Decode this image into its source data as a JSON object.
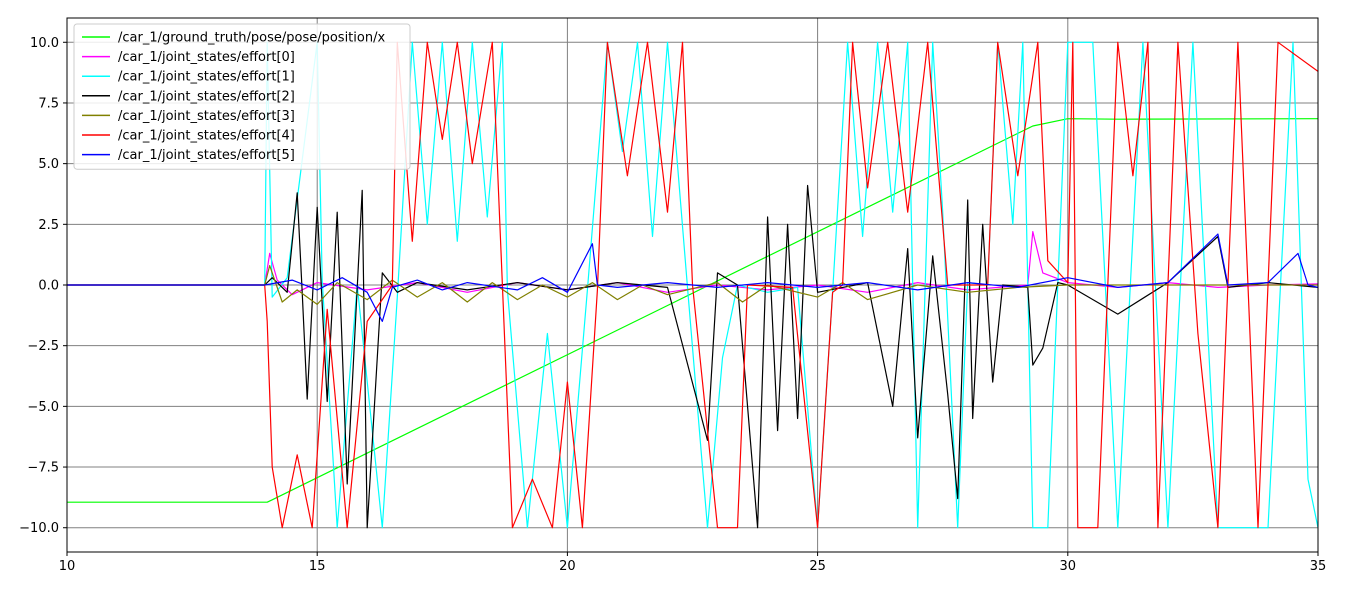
{
  "chart_data": {
    "type": "line",
    "title": "",
    "xlabel": "",
    "ylabel": "",
    "xlim": [
      10,
      35
    ],
    "ylim": [
      -11,
      11
    ],
    "x_ticks": [
      10,
      15,
      20,
      25,
      30,
      35
    ],
    "y_ticks": [
      -10.0,
      -7.5,
      -5.0,
      -2.5,
      0.0,
      2.5,
      5.0,
      7.5,
      10.0
    ],
    "x_tick_labels": [
      "10",
      "15",
      "20",
      "25",
      "30",
      "35"
    ],
    "y_tick_labels": [
      "−10.0",
      "−7.5",
      "−5.0",
      "−2.5",
      "0.0",
      "2.5",
      "5.0",
      "7.5",
      "10.0"
    ],
    "grid": true,
    "legend_position": "top-left",
    "series": [
      {
        "name": "/car_1/ground_truth/pose/pose/position/x",
        "color": "#00ff00",
        "points": [
          [
            10,
            -8.95
          ],
          [
            14.0,
            -8.95
          ],
          [
            14.1,
            -8.85
          ],
          [
            29.3,
            6.55
          ],
          [
            30.0,
            6.85
          ],
          [
            31.0,
            6.83
          ],
          [
            35.0,
            6.85
          ]
        ]
      },
      {
        "name": "/car_1/joint_states/effort[0]",
        "color": "#ff00ff",
        "points": [
          [
            10,
            0.0
          ],
          [
            13.95,
            0.0
          ],
          [
            14.05,
            1.3
          ],
          [
            14.2,
            0.2
          ],
          [
            14.5,
            -0.4
          ],
          [
            15.0,
            0.1
          ],
          [
            16.0,
            -0.2
          ],
          [
            17.0,
            0.1
          ],
          [
            18.0,
            -0.3
          ],
          [
            19.0,
            0.1
          ],
          [
            20.0,
            -0.2
          ],
          [
            21.0,
            0.1
          ],
          [
            22.0,
            -0.3
          ],
          [
            23.0,
            0.0
          ],
          [
            24.0,
            -0.2
          ],
          [
            25.0,
            0.0
          ],
          [
            26.0,
            -0.3
          ],
          [
            27.0,
            0.1
          ],
          [
            28.0,
            -0.2
          ],
          [
            29.2,
            0.0
          ],
          [
            29.3,
            2.2
          ],
          [
            29.5,
            0.5
          ],
          [
            30.0,
            0.1
          ],
          [
            31.0,
            -0.1
          ],
          [
            32.0,
            0.1
          ],
          [
            33.0,
            -0.1
          ],
          [
            34.0,
            0.0
          ],
          [
            35.0,
            0.05
          ]
        ]
      },
      {
        "name": "/car_1/joint_states/effort[1]",
        "color": "#00ffff",
        "points": [
          [
            10,
            0.0
          ],
          [
            13.95,
            0.0
          ],
          [
            14.0,
            10.0
          ],
          [
            14.1,
            -0.5
          ],
          [
            14.4,
            0.3
          ],
          [
            15.0,
            10.0
          ],
          [
            15.1,
            0.2
          ],
          [
            15.4,
            -10.0
          ],
          [
            15.8,
            0.0
          ],
          [
            16.3,
            -10.0
          ],
          [
            16.6,
            -0.5
          ],
          [
            16.9,
            10.0
          ],
          [
            17.2,
            2.5
          ],
          [
            17.5,
            10.0
          ],
          [
            17.8,
            1.8
          ],
          [
            18.1,
            10.0
          ],
          [
            18.4,
            2.8
          ],
          [
            18.7,
            10.0
          ],
          [
            18.8,
            -0.2
          ],
          [
            19.2,
            -10.0
          ],
          [
            19.6,
            -2.0
          ],
          [
            20.0,
            -10.0
          ],
          [
            20.4,
            -0.2
          ],
          [
            20.8,
            10.0
          ],
          [
            21.1,
            5.5
          ],
          [
            21.4,
            10.0
          ],
          [
            21.7,
            2.0
          ],
          [
            22.0,
            10.0
          ],
          [
            22.4,
            -0.1
          ],
          [
            22.8,
            -10.0
          ],
          [
            23.1,
            -3.0
          ],
          [
            23.4,
            0.0
          ],
          [
            24.0,
            -0.3
          ],
          [
            24.6,
            -0.1
          ],
          [
            25.0,
            -10.0
          ],
          [
            25.3,
            -0.3
          ],
          [
            25.6,
            10.0
          ],
          [
            25.9,
            2.0
          ],
          [
            26.2,
            10.0
          ],
          [
            26.5,
            3.0
          ],
          [
            26.8,
            10.0
          ],
          [
            27.0,
            -10.0
          ],
          [
            27.3,
            10.0
          ],
          [
            27.5,
            3.0
          ],
          [
            27.8,
            -10.0
          ],
          [
            28.0,
            0.1
          ],
          [
            28.4,
            0.0
          ],
          [
            28.6,
            10.0
          ],
          [
            28.9,
            2.5
          ],
          [
            29.1,
            10.0
          ],
          [
            29.2,
            0.0
          ],
          [
            29.3,
            -10.0
          ],
          [
            29.6,
            -10.0
          ],
          [
            30.0,
            10.0
          ],
          [
            30.5,
            10.0
          ],
          [
            31.0,
            -10.0
          ],
          [
            31.5,
            10.0
          ],
          [
            32.0,
            -10.0
          ],
          [
            32.5,
            10.0
          ],
          [
            33.0,
            -10.0
          ],
          [
            34.0,
            -10.0
          ],
          [
            34.5,
            10.0
          ],
          [
            34.8,
            -8.0
          ],
          [
            35.0,
            -10.0
          ]
        ]
      },
      {
        "name": "/car_1/joint_states/effort[2]",
        "color": "#000000",
        "points": [
          [
            10,
            0.0
          ],
          [
            13.95,
            0.0
          ],
          [
            14.1,
            0.3
          ],
          [
            14.4,
            -0.3
          ],
          [
            14.6,
            3.8
          ],
          [
            14.7,
            -0.3
          ],
          [
            14.8,
            -4.7
          ],
          [
            15.0,
            3.2
          ],
          [
            15.2,
            -4.8
          ],
          [
            15.4,
            3.0
          ],
          [
            15.6,
            -8.2
          ],
          [
            15.9,
            3.9
          ],
          [
            16.0,
            -10.0
          ],
          [
            16.3,
            0.5
          ],
          [
            16.6,
            -0.3
          ],
          [
            17.0,
            0.1
          ],
          [
            18.0,
            -0.2
          ],
          [
            19.0,
            0.1
          ],
          [
            20.0,
            -0.2
          ],
          [
            21.0,
            0.1
          ],
          [
            22.0,
            -0.1
          ],
          [
            22.8,
            -6.4
          ],
          [
            23.0,
            0.5
          ],
          [
            23.4,
            0.0
          ],
          [
            23.8,
            -10.0
          ],
          [
            24.0,
            2.8
          ],
          [
            24.2,
            -6.0
          ],
          [
            24.4,
            2.5
          ],
          [
            24.6,
            -5.5
          ],
          [
            24.8,
            4.1
          ],
          [
            25.0,
            -0.3
          ],
          [
            26.0,
            0.1
          ],
          [
            26.5,
            -5.0
          ],
          [
            26.8,
            1.5
          ],
          [
            27.0,
            -6.3
          ],
          [
            27.3,
            1.2
          ],
          [
            27.6,
            -4.5
          ],
          [
            27.8,
            -8.8
          ],
          [
            28.0,
            3.5
          ],
          [
            28.1,
            -5.5
          ],
          [
            28.3,
            2.5
          ],
          [
            28.5,
            -4.0
          ],
          [
            28.7,
            0.0
          ],
          [
            29.2,
            -0.1
          ],
          [
            29.3,
            -3.3
          ],
          [
            29.5,
            -2.6
          ],
          [
            29.8,
            0.1
          ],
          [
            30.0,
            0.0
          ],
          [
            31.0,
            -1.2
          ],
          [
            32.0,
            0.1
          ],
          [
            33.0,
            2.0
          ],
          [
            33.2,
            -0.1
          ],
          [
            34.0,
            0.1
          ],
          [
            35.0,
            -0.1
          ]
        ]
      },
      {
        "name": "/car_1/joint_states/effort[3]",
        "color": "#808000",
        "points": [
          [
            10,
            0.0
          ],
          [
            13.95,
            0.0
          ],
          [
            14.05,
            0.8
          ],
          [
            14.3,
            -0.7
          ],
          [
            14.6,
            -0.2
          ],
          [
            15.0,
            -0.8
          ],
          [
            15.4,
            0.1
          ],
          [
            16.0,
            -0.6
          ],
          [
            16.5,
            0.2
          ],
          [
            17.0,
            -0.5
          ],
          [
            17.5,
            0.1
          ],
          [
            18.0,
            -0.7
          ],
          [
            18.5,
            0.1
          ],
          [
            19.0,
            -0.6
          ],
          [
            19.5,
            0.0
          ],
          [
            20.0,
            -0.5
          ],
          [
            20.5,
            0.1
          ],
          [
            21.0,
            -0.6
          ],
          [
            21.5,
            0.0
          ],
          [
            22.0,
            -0.4
          ],
          [
            23.0,
            0.1
          ],
          [
            23.5,
            -0.7
          ],
          [
            24.0,
            0.0
          ],
          [
            25.0,
            -0.5
          ],
          [
            25.5,
            0.1
          ],
          [
            26.0,
            -0.6
          ],
          [
            27.0,
            0.0
          ],
          [
            28.0,
            -0.3
          ],
          [
            29.0,
            -0.1
          ],
          [
            30.0,
            0.0
          ],
          [
            35.0,
            0.0
          ]
        ]
      },
      {
        "name": "/car_1/joint_states/effort[4]",
        "color": "#ff0000",
        "points": [
          [
            10,
            0.0
          ],
          [
            13.95,
            0.0
          ],
          [
            14.0,
            -1.5
          ],
          [
            14.1,
            -7.5
          ],
          [
            14.3,
            -10.0
          ],
          [
            14.6,
            -7.0
          ],
          [
            14.9,
            -10.0
          ],
          [
            15.2,
            -1.0
          ],
          [
            15.6,
            -10.0
          ],
          [
            16.0,
            -1.5
          ],
          [
            16.5,
            0.0
          ],
          [
            16.6,
            10.0
          ],
          [
            16.9,
            1.8
          ],
          [
            17.2,
            10.0
          ],
          [
            17.5,
            6.0
          ],
          [
            17.8,
            10.0
          ],
          [
            18.1,
            5.0
          ],
          [
            18.5,
            10.0
          ],
          [
            18.7,
            0.1
          ],
          [
            18.9,
            -10.0
          ],
          [
            19.3,
            -8.0
          ],
          [
            19.7,
            -10.0
          ],
          [
            20.0,
            -4.0
          ],
          [
            20.3,
            -10.0
          ],
          [
            20.6,
            -0.2
          ],
          [
            20.8,
            10.0
          ],
          [
            21.2,
            4.5
          ],
          [
            21.6,
            10.0
          ],
          [
            22.0,
            3.0
          ],
          [
            22.3,
            10.0
          ],
          [
            22.5,
            0.0
          ],
          [
            23.0,
            -10.0
          ],
          [
            23.4,
            -10.0
          ],
          [
            23.6,
            0.0
          ],
          [
            24.5,
            -0.1
          ],
          [
            25.0,
            -10.0
          ],
          [
            25.3,
            -0.3
          ],
          [
            25.5,
            0.0
          ],
          [
            25.7,
            10.0
          ],
          [
            26.0,
            4.0
          ],
          [
            26.4,
            10.0
          ],
          [
            26.8,
            3.0
          ],
          [
            27.2,
            10.0
          ],
          [
            27.6,
            0.0
          ],
          [
            28.4,
            0.0
          ],
          [
            28.6,
            10.0
          ],
          [
            29.0,
            4.5
          ],
          [
            29.4,
            10.0
          ],
          [
            29.6,
            1.0
          ],
          [
            30.0,
            0.1
          ],
          [
            30.1,
            10.0
          ],
          [
            30.2,
            -10.0
          ],
          [
            30.6,
            -10.0
          ],
          [
            30.8,
            0.0
          ],
          [
            31.0,
            10.0
          ],
          [
            31.3,
            4.5
          ],
          [
            31.6,
            10.0
          ],
          [
            31.8,
            -10.0
          ],
          [
            32.2,
            10.0
          ],
          [
            32.6,
            -2.0
          ],
          [
            33.0,
            -10.0
          ],
          [
            33.4,
            10.0
          ],
          [
            33.8,
            -10.0
          ],
          [
            34.2,
            10.0
          ],
          [
            35.0,
            8.8
          ]
        ]
      },
      {
        "name": "/car_1/joint_states/effort[5]",
        "color": "#0000ff",
        "points": [
          [
            10,
            0.0
          ],
          [
            13.95,
            0.0
          ],
          [
            14.5,
            0.2
          ],
          [
            15.0,
            -0.2
          ],
          [
            15.5,
            0.3
          ],
          [
            16.0,
            -0.3
          ],
          [
            16.3,
            -1.5
          ],
          [
            16.5,
            -0.1
          ],
          [
            17.0,
            0.2
          ],
          [
            17.5,
            -0.2
          ],
          [
            18.0,
            0.1
          ],
          [
            19.0,
            -0.2
          ],
          [
            19.5,
            0.3
          ],
          [
            20.0,
            -0.3
          ],
          [
            20.5,
            1.7
          ],
          [
            20.6,
            0.0
          ],
          [
            21.0,
            -0.1
          ],
          [
            22.0,
            0.1
          ],
          [
            23.0,
            -0.1
          ],
          [
            24.0,
            0.1
          ],
          [
            25.0,
            -0.1
          ],
          [
            26.0,
            0.1
          ],
          [
            27.0,
            -0.2
          ],
          [
            28.0,
            0.1
          ],
          [
            29.0,
            -0.1
          ],
          [
            30.0,
            0.3
          ],
          [
            31.0,
            -0.1
          ],
          [
            32.0,
            0.1
          ],
          [
            33.0,
            2.1
          ],
          [
            33.2,
            0.0
          ],
          [
            34.0,
            0.1
          ],
          [
            34.6,
            1.3
          ],
          [
            34.8,
            0.0
          ],
          [
            35.0,
            -0.1
          ]
        ]
      }
    ]
  }
}
